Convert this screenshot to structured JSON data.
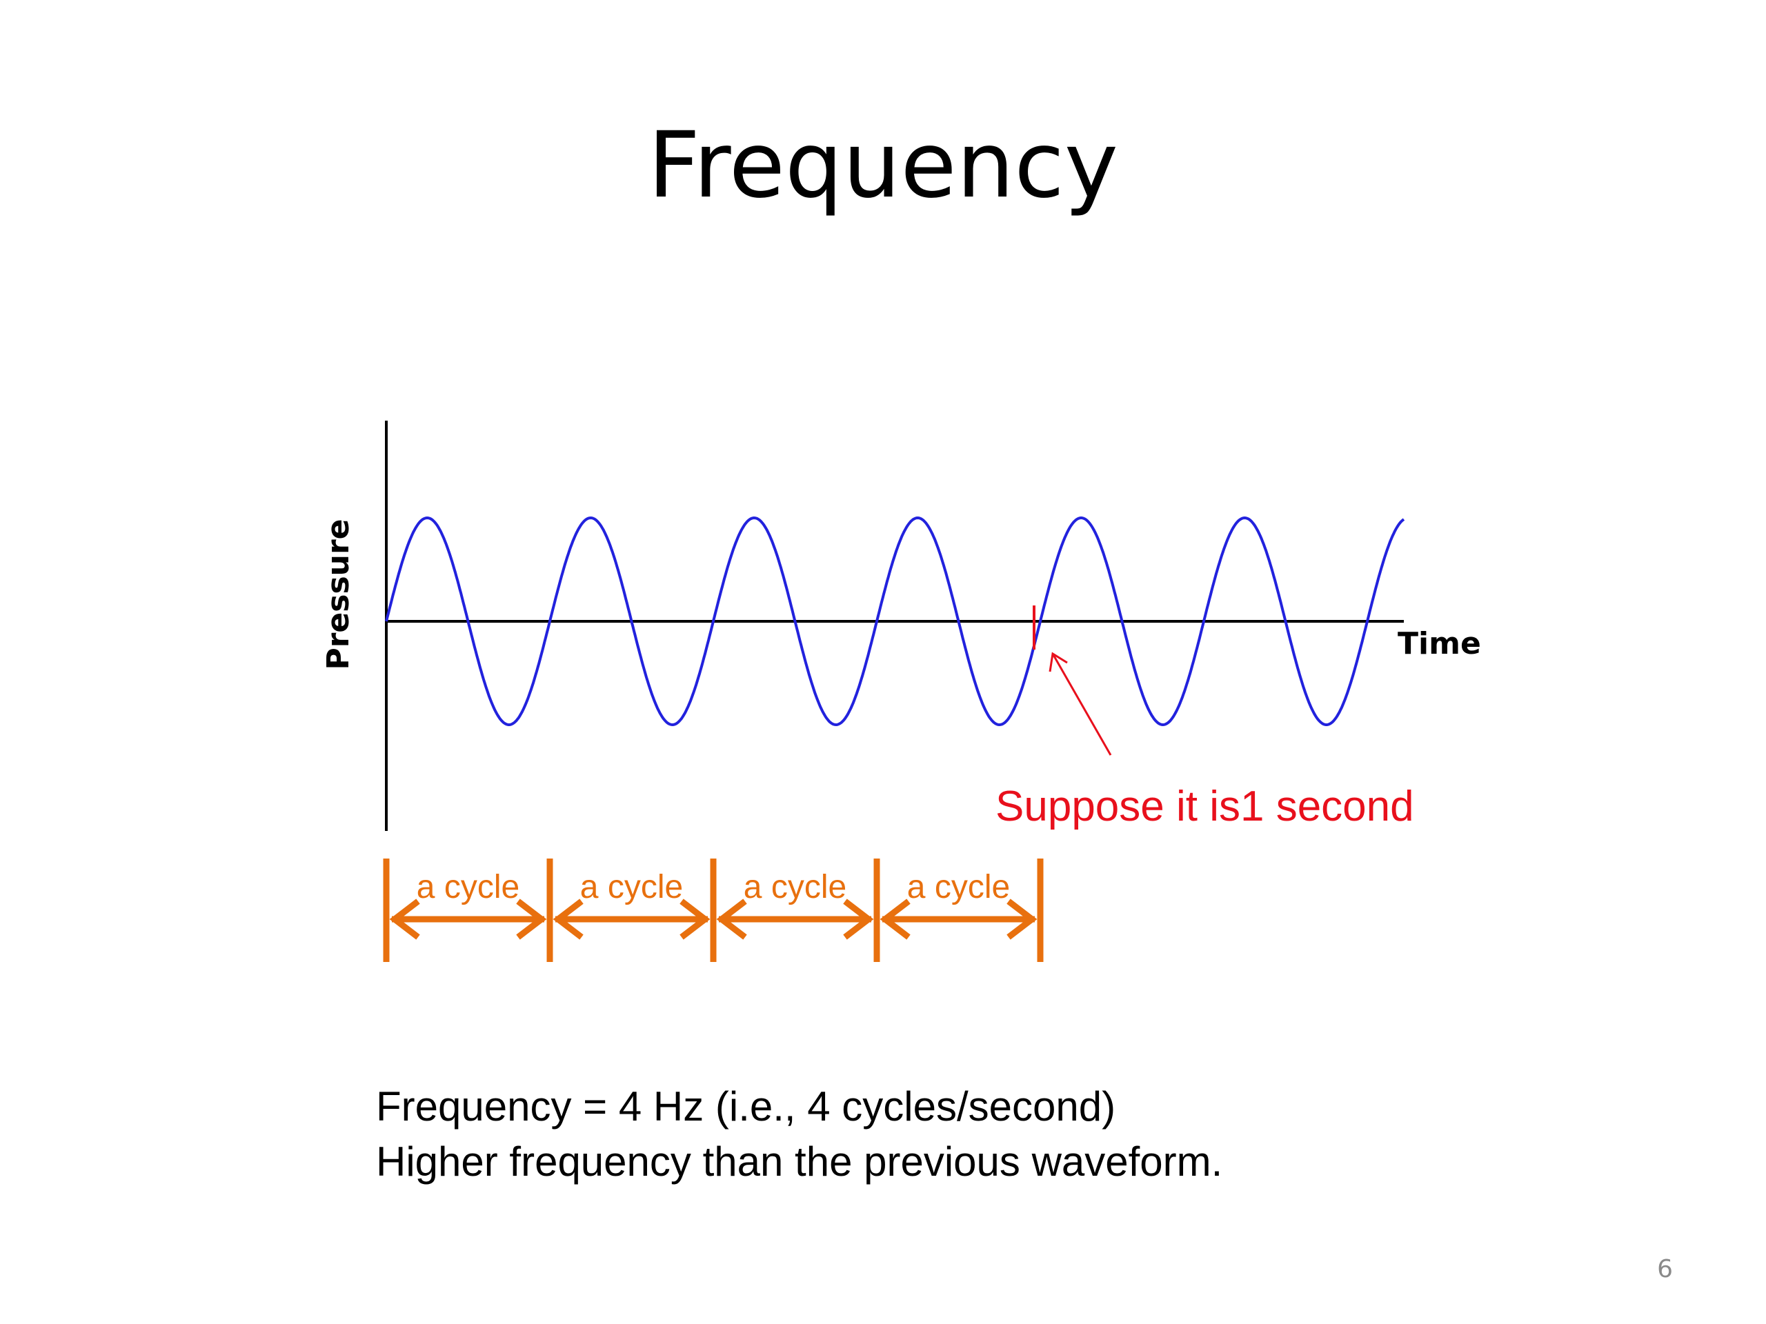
{
  "slide": {
    "title": "Frequency",
    "page_number": "6"
  },
  "diagram": {
    "y_axis_label": "Pressure",
    "x_axis_label": "Time",
    "annotation": "Suppose it is1 second",
    "cycle_label": "a cycle",
    "cycle_count": 4,
    "visible_cycles": 6.25,
    "colors": {
      "wave": "#2222dd",
      "axes": "#000000",
      "annotation": "#e8101c",
      "cycle_markers": "#e8700e"
    }
  },
  "caption": {
    "line1": "Frequency = 4 Hz (i.e., 4 cycles/second)",
    "line2": "Higher frequency than the previous waveform."
  }
}
